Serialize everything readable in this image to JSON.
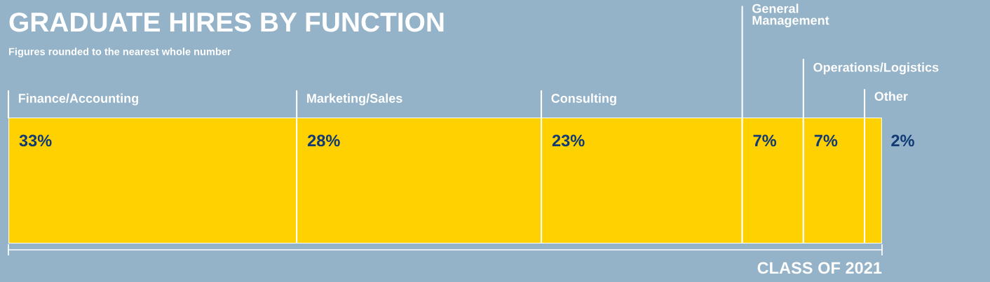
{
  "chart_data": {
    "type": "bar",
    "orientation": "horizontal",
    "stacked": true,
    "title": "GRADUATE HIRES BY FUNCTION",
    "subtitle": "Figures rounded to the nearest whole number",
    "xlabel": "CLASS OF 2021",
    "categories": [
      null
    ],
    "xlim": [
      0,
      100
    ],
    "legend": "top",
    "series": [
      {
        "name": "Finance/Accounting",
        "color": "#ffd100",
        "values": [
          33
        ],
        "value_labels": [
          "33%"
        ]
      },
      {
        "name": "Marketing/Sales",
        "color": "#ffd100",
        "values": [
          28
        ],
        "value_labels": [
          "28%"
        ]
      },
      {
        "name": "Consulting",
        "color": "#ffd100",
        "values": [
          23
        ],
        "value_labels": [
          "23%"
        ]
      },
      {
        "name": "General\nManagement",
        "color": "#ffd100",
        "values": [
          7
        ],
        "value_labels": [
          "7%"
        ]
      },
      {
        "name": "Operations/Logistics",
        "color": "#ffd100",
        "values": [
          7
        ],
        "value_labels": [
          "7%"
        ]
      },
      {
        "name": "Other",
        "color": "#ffd100",
        "values": [
          2
        ],
        "value_labels": [
          "2%"
        ]
      }
    ]
  }
}
